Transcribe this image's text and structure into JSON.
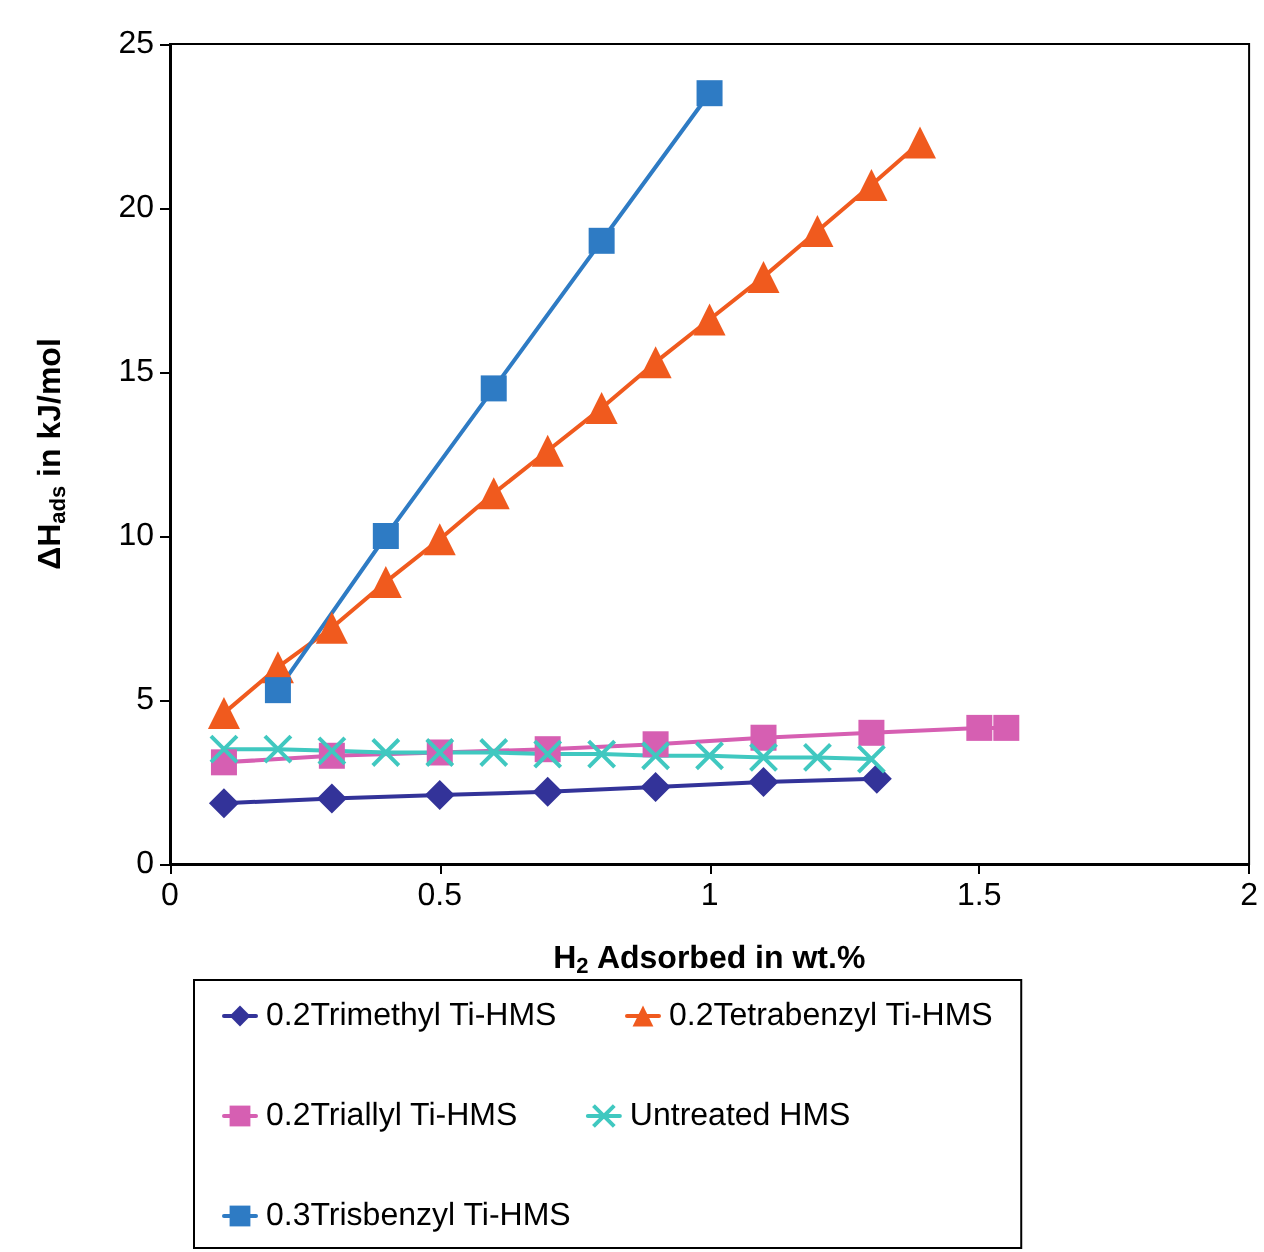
{
  "chart_data": {
    "type": "line",
    "xlabel": "H$_{2}$ Adsorbed in wt.%",
    "ylabel": "ΔH$_{ads}$ in kJ/mol",
    "xlim": [
      0,
      2
    ],
    "xticks": [
      0,
      0.5,
      1,
      1.5,
      2
    ],
    "ylim": [
      0,
      25
    ],
    "yticks": [
      0,
      5,
      10,
      15,
      20,
      25
    ],
    "grid": false,
    "legend": "bottom",
    "line_style": "solid",
    "series": [
      {
        "name": "0.2Trimethyl Ti-HMS",
        "color": "#333399",
        "marker": "diamond",
        "x": [
          0.1,
          0.3,
          0.5,
          0.7,
          0.9,
          1.1,
          1.31
        ],
        "values": [
          1.85,
          2.0,
          2.1,
          2.2,
          2.35,
          2.5,
          2.6
        ]
      },
      {
        "name": "0.2Tetrabenzyl Ti-HMS",
        "color": "#f05a1e",
        "marker": "triangle",
        "x": [
          0.1,
          0.2,
          0.3,
          0.4,
          0.5,
          0.6,
          0.7,
          0.8,
          0.9,
          1.0,
          1.1,
          1.2,
          1.3,
          1.39
        ],
        "values": [
          4.6,
          6.0,
          7.2,
          8.6,
          9.9,
          11.3,
          12.6,
          13.9,
          15.3,
          16.6,
          17.9,
          19.3,
          20.7,
          22.0
        ]
      },
      {
        "name": "0.2Triallyl Ti-HMS",
        "color": "#d65fb2",
        "marker": "square",
        "x": [
          0.1,
          0.3,
          0.5,
          0.7,
          0.9,
          1.1,
          1.3,
          1.5,
          1.55
        ],
        "values": [
          3.1,
          3.3,
          3.4,
          3.5,
          3.65,
          3.85,
          4.0,
          4.15,
          4.15
        ]
      },
      {
        "name": "Untreated HMS",
        "color": "#40c8c0",
        "marker": "cross",
        "x": [
          0.1,
          0.2,
          0.3,
          0.4,
          0.5,
          0.6,
          0.7,
          0.8,
          0.9,
          1.0,
          1.1,
          1.2,
          1.3
        ],
        "values": [
          3.5,
          3.5,
          3.45,
          3.4,
          3.4,
          3.4,
          3.35,
          3.35,
          3.3,
          3.3,
          3.25,
          3.25,
          3.2
        ]
      },
      {
        "name": "0.3Trisbenzyl Ti-HMS",
        "color": "#2e7bc4",
        "marker": "square",
        "x": [
          0.2,
          0.4,
          0.6,
          0.8,
          1.0
        ],
        "values": [
          5.3,
          10.0,
          14.5,
          19.0,
          23.5
        ]
      }
    ]
  }
}
